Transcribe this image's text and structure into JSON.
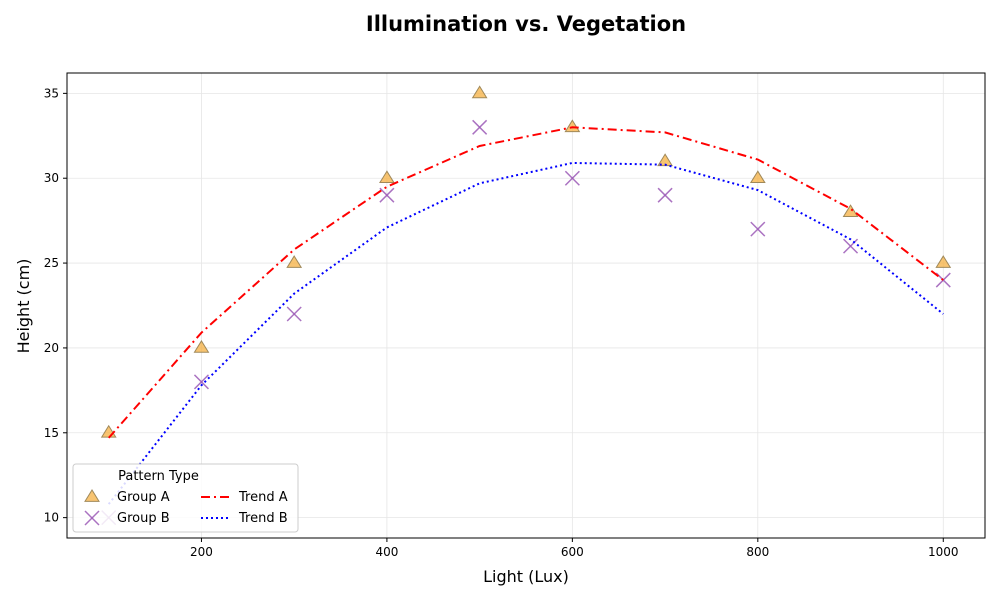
{
  "chart_data": {
    "type": "scatter",
    "title": "Illumination vs. Vegetation",
    "xlabel": "Light (Lux)",
    "ylabel": "Height (cm)",
    "xlim": [
      55,
      1045
    ],
    "ylim": [
      8.8,
      36.2
    ],
    "xticks": [
      200,
      400,
      600,
      800,
      1000
    ],
    "yticks": [
      10,
      15,
      20,
      25,
      30,
      35
    ],
    "grid": true,
    "legend": {
      "title": "Pattern Type",
      "placement": "lower-left",
      "columns": 2
    },
    "x": [
      100,
      200,
      300,
      400,
      500,
      600,
      700,
      800,
      900,
      1000
    ],
    "series": [
      {
        "name": "Group A",
        "kind": "scatter",
        "marker": "triangle",
        "color": "#F5B041",
        "edge": "#A0895A",
        "values": [
          15,
          20,
          25,
          30,
          35,
          33,
          31,
          30,
          28,
          25
        ]
      },
      {
        "name": "Group B",
        "kind": "scatter",
        "marker": "x",
        "color": "#9B59B6",
        "values": [
          10,
          18,
          22,
          29,
          33,
          30,
          29,
          27,
          26,
          24
        ]
      },
      {
        "name": "Trend A",
        "kind": "line",
        "style": "dashdot",
        "color": "#FF0000",
        "values": [
          14.7,
          20.9,
          25.8,
          29.5,
          31.9,
          33.0,
          32.7,
          31.1,
          28.2,
          24.0
        ]
      },
      {
        "name": "Trend B",
        "kind": "line",
        "style": "dotted",
        "color": "#0000FF",
        "values": [
          10.8,
          17.8,
          23.2,
          27.1,
          29.7,
          30.9,
          30.8,
          29.3,
          26.4,
          22.0
        ]
      }
    ]
  }
}
